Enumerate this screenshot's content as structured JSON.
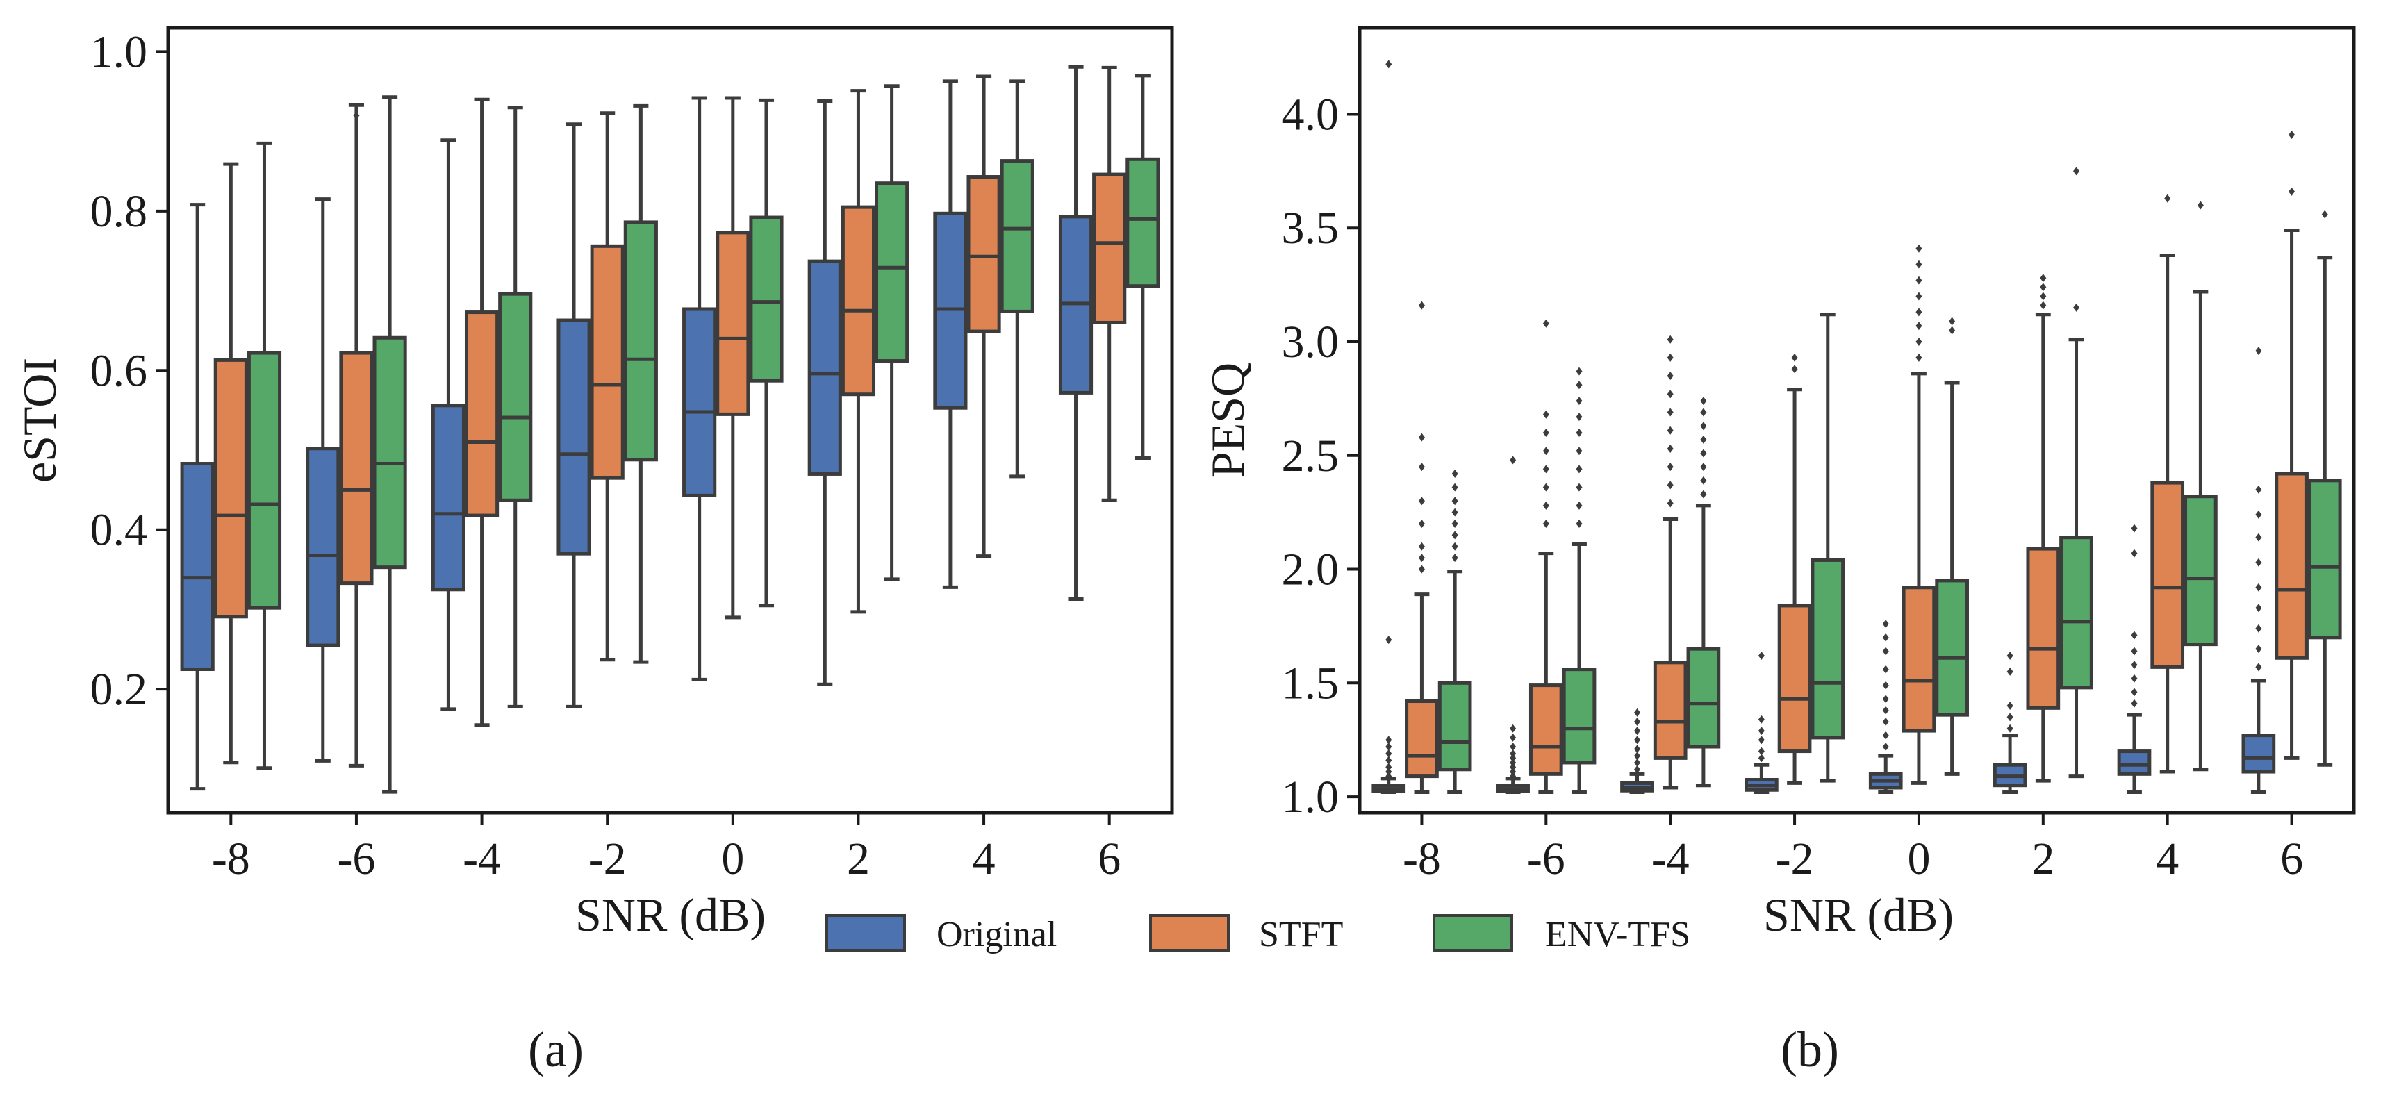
{
  "legend": {
    "entries": [
      {
        "label": "Original",
        "color": "#4c72b0"
      },
      {
        "label": "STFT",
        "color": "#dd8452"
      },
      {
        "label": "ENV-TFS",
        "color": "#55a868"
      }
    ]
  },
  "chart_data": [
    {
      "type": "box",
      "panel_label": "(a)",
      "xlabel": "SNR (dB)",
      "ylabel": "eSTOI",
      "categories": [
        "-8",
        "-6",
        "-4",
        "-2",
        "0",
        "2",
        "4",
        "6"
      ],
      "ylim": [
        0.045,
        1.03
      ],
      "yticks": [
        "0.2",
        "0.4",
        "0.6",
        "0.8",
        "1.0"
      ],
      "ytick_values": [
        0.2,
        0.4,
        0.6,
        0.8,
        1.0
      ],
      "grid": false,
      "series": [
        {
          "name": "Original",
          "color": "#4c72b0",
          "boxes": [
            {
              "whislo": 0.075,
              "q1": 0.225,
              "med": 0.34,
              "q3": 0.483,
              "whishi": 0.808,
              "fliers": []
            },
            {
              "whislo": 0.11,
              "q1": 0.255,
              "med": 0.368,
              "q3": 0.502,
              "whishi": 0.815,
              "fliers": []
            },
            {
              "whislo": 0.175,
              "q1": 0.325,
              "med": 0.42,
              "q3": 0.556,
              "whishi": 0.889,
              "fliers": []
            },
            {
              "whislo": 0.178,
              "q1": 0.37,
              "med": 0.495,
              "q3": 0.663,
              "whishi": 0.909,
              "fliers": []
            },
            {
              "whislo": 0.212,
              "q1": 0.443,
              "med": 0.548,
              "q3": 0.677,
              "whishi": 0.942,
              "fliers": []
            },
            {
              "whislo": 0.206,
              "q1": 0.47,
              "med": 0.596,
              "q3": 0.737,
              "whishi": 0.938,
              "fliers": []
            },
            {
              "whislo": 0.328,
              "q1": 0.553,
              "med": 0.677,
              "q3": 0.797,
              "whishi": 0.963,
              "fliers": []
            },
            {
              "whislo": 0.313,
              "q1": 0.572,
              "med": 0.684,
              "q3": 0.793,
              "whishi": 0.981,
              "fliers": []
            }
          ]
        },
        {
          "name": "STFT",
          "color": "#dd8452",
          "boxes": [
            {
              "whislo": 0.108,
              "q1": 0.291,
              "med": 0.418,
              "q3": 0.613,
              "whishi": 0.859,
              "fliers": []
            },
            {
              "whislo": 0.104,
              "q1": 0.333,
              "med": 0.45,
              "q3": 0.622,
              "whishi": 0.933,
              "fliers": [
                0.92
              ]
            },
            {
              "whislo": 0.155,
              "q1": 0.418,
              "med": 0.51,
              "q3": 0.673,
              "whishi": 0.94,
              "fliers": []
            },
            {
              "whislo": 0.237,
              "q1": 0.465,
              "med": 0.582,
              "q3": 0.756,
              "whishi": 0.923,
              "fliers": []
            },
            {
              "whislo": 0.29,
              "q1": 0.545,
              "med": 0.64,
              "q3": 0.773,
              "whishi": 0.942,
              "fliers": []
            },
            {
              "whislo": 0.297,
              "q1": 0.57,
              "med": 0.675,
              "q3": 0.805,
              "whishi": 0.951,
              "fliers": []
            },
            {
              "whislo": 0.367,
              "q1": 0.649,
              "med": 0.743,
              "q3": 0.843,
              "whishi": 0.969,
              "fliers": []
            },
            {
              "whislo": 0.437,
              "q1": 0.66,
              "med": 0.76,
              "q3": 0.846,
              "whishi": 0.98,
              "fliers": []
            }
          ]
        },
        {
          "name": "ENV-TFS",
          "color": "#55a868",
          "boxes": [
            {
              "whislo": 0.101,
              "q1": 0.302,
              "med": 0.432,
              "q3": 0.622,
              "whishi": 0.885,
              "fliers": []
            },
            {
              "whislo": 0.071,
              "q1": 0.353,
              "med": 0.483,
              "q3": 0.641,
              "whishi": 0.943,
              "fliers": []
            },
            {
              "whislo": 0.178,
              "q1": 0.437,
              "med": 0.541,
              "q3": 0.696,
              "whishi": 0.93,
              "fliers": []
            },
            {
              "whislo": 0.234,
              "q1": 0.488,
              "med": 0.614,
              "q3": 0.786,
              "whishi": 0.932,
              "fliers": []
            },
            {
              "whislo": 0.305,
              "q1": 0.587,
              "med": 0.686,
              "q3": 0.792,
              "whishi": 0.939,
              "fliers": []
            },
            {
              "whislo": 0.338,
              "q1": 0.612,
              "med": 0.729,
              "q3": 0.835,
              "whishi": 0.957,
              "fliers": []
            },
            {
              "whislo": 0.467,
              "q1": 0.674,
              "med": 0.778,
              "q3": 0.863,
              "whishi": 0.963,
              "fliers": []
            },
            {
              "whislo": 0.49,
              "q1": 0.706,
              "med": 0.79,
              "q3": 0.865,
              "whishi": 0.97,
              "fliers": []
            }
          ]
        }
      ]
    },
    {
      "type": "box",
      "panel_label": "(b)",
      "xlabel": "SNR (dB)",
      "ylabel": "PESQ",
      "categories": [
        "-8",
        "-6",
        "-4",
        "-2",
        "0",
        "2",
        "4",
        "6"
      ],
      "ylim": [
        0.93,
        4.38
      ],
      "yticks": [
        "1.0",
        "1.5",
        "2.0",
        "2.5",
        "3.0",
        "3.5",
        "4.0"
      ],
      "ytick_values": [
        1.0,
        1.5,
        2.0,
        2.5,
        3.0,
        3.5,
        4.0
      ],
      "grid": false,
      "series": [
        {
          "name": "Original",
          "color": "#4c72b0",
          "boxes": [
            {
              "whislo": 1.02,
              "q1": 1.025,
              "med": 1.035,
              "q3": 1.05,
              "whishi": 1.08,
              "fliers": [
                1.09,
                1.11,
                1.13,
                1.16,
                1.19,
                1.22,
                1.25,
                1.69,
                4.22
              ]
            },
            {
              "whislo": 1.02,
              "q1": 1.025,
              "med": 1.035,
              "q3": 1.05,
              "whishi": 1.08,
              "fliers": [
                1.09,
                1.11,
                1.13,
                1.15,
                1.17,
                1.19,
                1.22,
                1.26,
                1.3,
                2.48
              ]
            },
            {
              "whislo": 1.02,
              "q1": 1.027,
              "med": 1.04,
              "q3": 1.06,
              "whishi": 1.1,
              "fliers": [
                1.12,
                1.15,
                1.18,
                1.21,
                1.25,
                1.29,
                1.33,
                1.37
              ]
            },
            {
              "whislo": 1.02,
              "q1": 1.03,
              "med": 1.05,
              "q3": 1.075,
              "whishi": 1.14,
              "fliers": [
                1.17,
                1.2,
                1.25,
                1.29,
                1.34,
                1.62
              ]
            },
            {
              "whislo": 1.02,
              "q1": 1.04,
              "med": 1.07,
              "q3": 1.1,
              "whishi": 1.18,
              "fliers": [
                1.22,
                1.27,
                1.33,
                1.38,
                1.43,
                1.49,
                1.56,
                1.64,
                1.7,
                1.76
              ]
            },
            {
              "whislo": 1.02,
              "q1": 1.05,
              "med": 1.09,
              "q3": 1.14,
              "whishi": 1.27,
              "fliers": [
                1.3,
                1.35,
                1.4,
                1.55,
                1.62
              ]
            },
            {
              "whislo": 1.02,
              "q1": 1.1,
              "med": 1.14,
              "q3": 1.2,
              "whishi": 1.36,
              "fliers": [
                1.41,
                1.46,
                1.52,
                1.58,
                1.64,
                1.71,
                2.07,
                2.18
              ]
            },
            {
              "whislo": 1.02,
              "q1": 1.11,
              "med": 1.17,
              "q3": 1.27,
              "whishi": 1.51,
              "fliers": [
                1.57,
                1.65,
                1.74,
                1.83,
                1.92,
                2.03,
                2.14,
                2.24,
                2.35,
                2.96
              ]
            }
          ]
        },
        {
          "name": "STFT",
          "color": "#dd8452",
          "boxes": [
            {
              "whislo": 1.02,
              "q1": 1.09,
              "med": 1.18,
              "q3": 1.42,
              "whishi": 1.89,
              "fliers": [
                2.0,
                2.05,
                2.1,
                2.2,
                2.3,
                2.45,
                2.58,
                3.16
              ]
            },
            {
              "whislo": 1.02,
              "q1": 1.1,
              "med": 1.22,
              "q3": 1.49,
              "whishi": 2.07,
              "fliers": [
                2.2,
                2.28,
                2.36,
                2.44,
                2.52,
                2.6,
                2.68,
                3.08
              ]
            },
            {
              "whislo": 1.04,
              "q1": 1.17,
              "med": 1.33,
              "q3": 1.59,
              "whishi": 2.22,
              "fliers": [
                2.29,
                2.37,
                2.45,
                2.53,
                2.61,
                2.69,
                2.77,
                2.85,
                2.93,
                3.01
              ]
            },
            {
              "whislo": 1.06,
              "q1": 1.2,
              "med": 1.43,
              "q3": 1.84,
              "whishi": 2.79,
              "fliers": [
                2.88,
                2.93
              ]
            },
            {
              "whislo": 1.06,
              "q1": 1.29,
              "med": 1.51,
              "q3": 1.92,
              "whishi": 2.86,
              "fliers": [
                2.93,
                3.0,
                3.07,
                3.13,
                3.2,
                3.27,
                3.34,
                3.41
              ]
            },
            {
              "whislo": 1.07,
              "q1": 1.39,
              "med": 1.65,
              "q3": 2.09,
              "whishi": 3.12,
              "fliers": [
                3.16,
                3.2,
                3.24,
                3.28
              ]
            },
            {
              "whislo": 1.11,
              "q1": 1.57,
              "med": 1.92,
              "q3": 2.38,
              "whishi": 3.38,
              "fliers": [
                3.63
              ]
            },
            {
              "whislo": 1.17,
              "q1": 1.61,
              "med": 1.91,
              "q3": 2.42,
              "whishi": 3.49,
              "fliers": [
                3.66,
                3.91
              ]
            }
          ]
        },
        {
          "name": "ENV-TFS",
          "color": "#55a868",
          "boxes": [
            {
              "whislo": 1.02,
              "q1": 1.12,
              "med": 1.24,
              "q3": 1.5,
              "whishi": 1.99,
              "fliers": [
                2.05,
                2.1,
                2.15,
                2.2,
                2.25,
                2.3,
                2.36,
                2.42
              ]
            },
            {
              "whislo": 1.02,
              "q1": 1.15,
              "med": 1.3,
              "q3": 1.56,
              "whishi": 2.11,
              "fliers": [
                2.2,
                2.28,
                2.36,
                2.44,
                2.52,
                2.6,
                2.67,
                2.74,
                2.81,
                2.87
              ]
            },
            {
              "whislo": 1.05,
              "q1": 1.22,
              "med": 1.41,
              "q3": 1.65,
              "whishi": 2.28,
              "fliers": [
                2.33,
                2.39,
                2.45,
                2.51,
                2.57,
                2.63,
                2.69,
                2.74
              ]
            },
            {
              "whislo": 1.07,
              "q1": 1.26,
              "med": 1.5,
              "q3": 2.04,
              "whishi": 3.12,
              "fliers": []
            },
            {
              "whislo": 1.1,
              "q1": 1.36,
              "med": 1.61,
              "q3": 1.95,
              "whishi": 2.82,
              "fliers": [
                3.05,
                3.09
              ]
            },
            {
              "whislo": 1.09,
              "q1": 1.48,
              "med": 1.77,
              "q3": 2.14,
              "whishi": 3.01,
              "fliers": [
                3.15,
                3.75
              ]
            },
            {
              "whislo": 1.12,
              "q1": 1.67,
              "med": 1.96,
              "q3": 2.32,
              "whishi": 3.22,
              "fliers": [
                3.6
              ]
            },
            {
              "whislo": 1.14,
              "q1": 1.7,
              "med": 2.01,
              "q3": 2.39,
              "whishi": 3.37,
              "fliers": [
                3.56
              ]
            }
          ]
        }
      ]
    }
  ]
}
